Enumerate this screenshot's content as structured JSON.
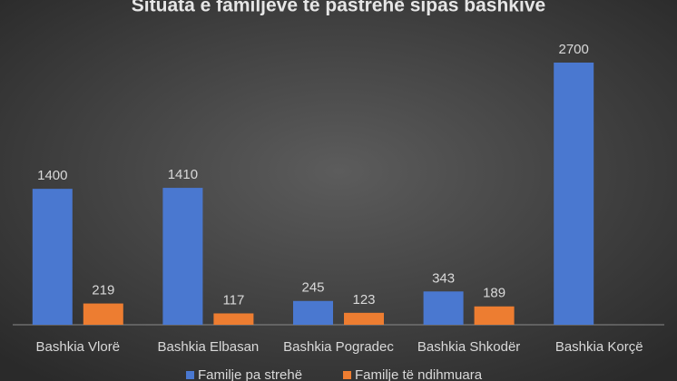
{
  "chart_data": {
    "type": "bar",
    "title": "Situata e familjeve të pastrehë sipas bashkive",
    "categories": [
      "Bashkia Vlorë",
      "Bashkia Elbasan",
      "Bashkia Pogradec",
      "Bashkia Shkodër",
      "Bashkia Korçë"
    ],
    "series": [
      {
        "name": "Familje pa strehë",
        "color": "#4a78d0",
        "values": [
          1400,
          1410,
          245,
          343,
          2700
        ]
      },
      {
        "name": "Familje të ndihmuara",
        "color": "#ed7d31",
        "values": [
          219,
          117,
          123,
          189,
          null
        ]
      }
    ]
  }
}
